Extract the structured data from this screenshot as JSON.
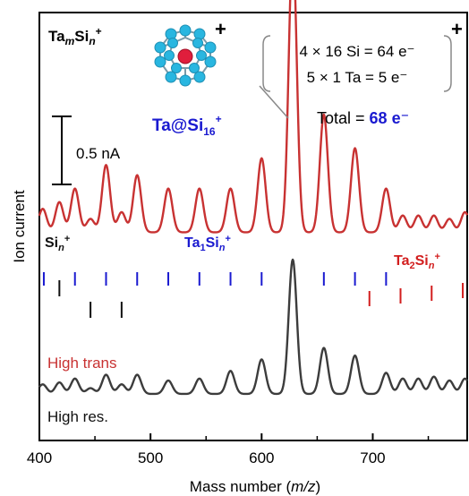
{
  "chart_data": {
    "type": "line",
    "xlabel": "Mass number (m/z)",
    "xlabel_parts": {
      "prefix": "Mass number (",
      "italic": "m/z",
      "suffix": ")"
    },
    "ylabel": "Ion current",
    "xlim": [
      400,
      785
    ],
    "xticks": [
      400,
      500,
      600,
      700
    ],
    "series": [
      {
        "name": "High trans",
        "color": "#c83232",
        "baseline": 0.48,
        "peak_scale": 1.0,
        "peaks": [
          [
            403,
            0.07
          ],
          [
            418,
            0.09
          ],
          [
            432,
            0.13
          ],
          [
            446,
            0.04
          ],
          [
            460,
            0.2
          ],
          [
            474,
            0.06
          ],
          [
            488,
            0.17
          ],
          [
            516,
            0.13
          ],
          [
            544,
            0.13
          ],
          [
            572,
            0.13
          ],
          [
            600,
            0.22
          ],
          [
            628,
            0.85
          ],
          [
            656,
            0.35
          ],
          [
            684,
            0.25
          ],
          [
            712,
            0.13
          ],
          [
            727,
            0.05
          ],
          [
            741,
            0.05
          ],
          [
            755,
            0.05
          ],
          [
            769,
            0.04
          ],
          [
            783,
            0.06
          ]
        ]
      },
      {
        "name": "High res.",
        "color": "#3c3c3c",
        "baseline": 0.0,
        "peak_scale": 0.57,
        "peaks": [
          [
            403,
            0.05
          ],
          [
            418,
            0.06
          ],
          [
            432,
            0.08
          ],
          [
            446,
            0.03
          ],
          [
            460,
            0.1
          ],
          [
            474,
            0.05
          ],
          [
            488,
            0.1
          ],
          [
            516,
            0.07
          ],
          [
            544,
            0.08
          ],
          [
            572,
            0.12
          ],
          [
            600,
            0.18
          ],
          [
            628,
            0.7
          ],
          [
            656,
            0.24
          ],
          [
            684,
            0.2
          ],
          [
            712,
            0.11
          ],
          [
            727,
            0.08
          ],
          [
            741,
            0.08
          ],
          [
            755,
            0.09
          ],
          [
            769,
            0.07
          ],
          [
            783,
            0.08
          ]
        ]
      }
    ],
    "scale_bar": {
      "label": "0.5 nA",
      "value": 0.5
    },
    "marker_groups": [
      {
        "label": "Sin+",
        "label_parts": [
          "Si",
          "n",
          "+"
        ],
        "color": "#111111",
        "masses": [
          418,
          446,
          474
        ]
      },
      {
        "label": "Ta1Sin+",
        "label_parts": [
          "Ta",
          "1",
          "Si",
          "n",
          "+"
        ],
        "color": "#1a1ad0",
        "masses": [
          404,
          432,
          460,
          488,
          516,
          544,
          572,
          600,
          656,
          684,
          712
        ]
      },
      {
        "label": "Ta2Sin+",
        "label_parts": [
          "Ta",
          "2",
          "Si",
          "n",
          "+"
        ],
        "color": "#d21e1e",
        "masses": [
          697,
          725,
          753,
          781
        ]
      }
    ],
    "annotations": {
      "formula": {
        "text": "TamSin+",
        "parts": [
          "Ta",
          "m",
          "Si",
          "n",
          "+"
        ]
      },
      "cluster_label": {
        "text": "Ta@Si16+",
        "parts": [
          "Ta@Si",
          "16",
          "+"
        ],
        "color": "#1a1ad0"
      },
      "cluster_charge": "+",
      "electron_count": {
        "lines": [
          "4 × 16 Si = 64 e⁻",
          "5 × 1  Ta = 5 e⁻"
        ],
        "total_prefix": "Total = ",
        "total_value": "68 e⁻",
        "total_color": "#1a1ad0",
        "charge": "+"
      }
    }
  }
}
